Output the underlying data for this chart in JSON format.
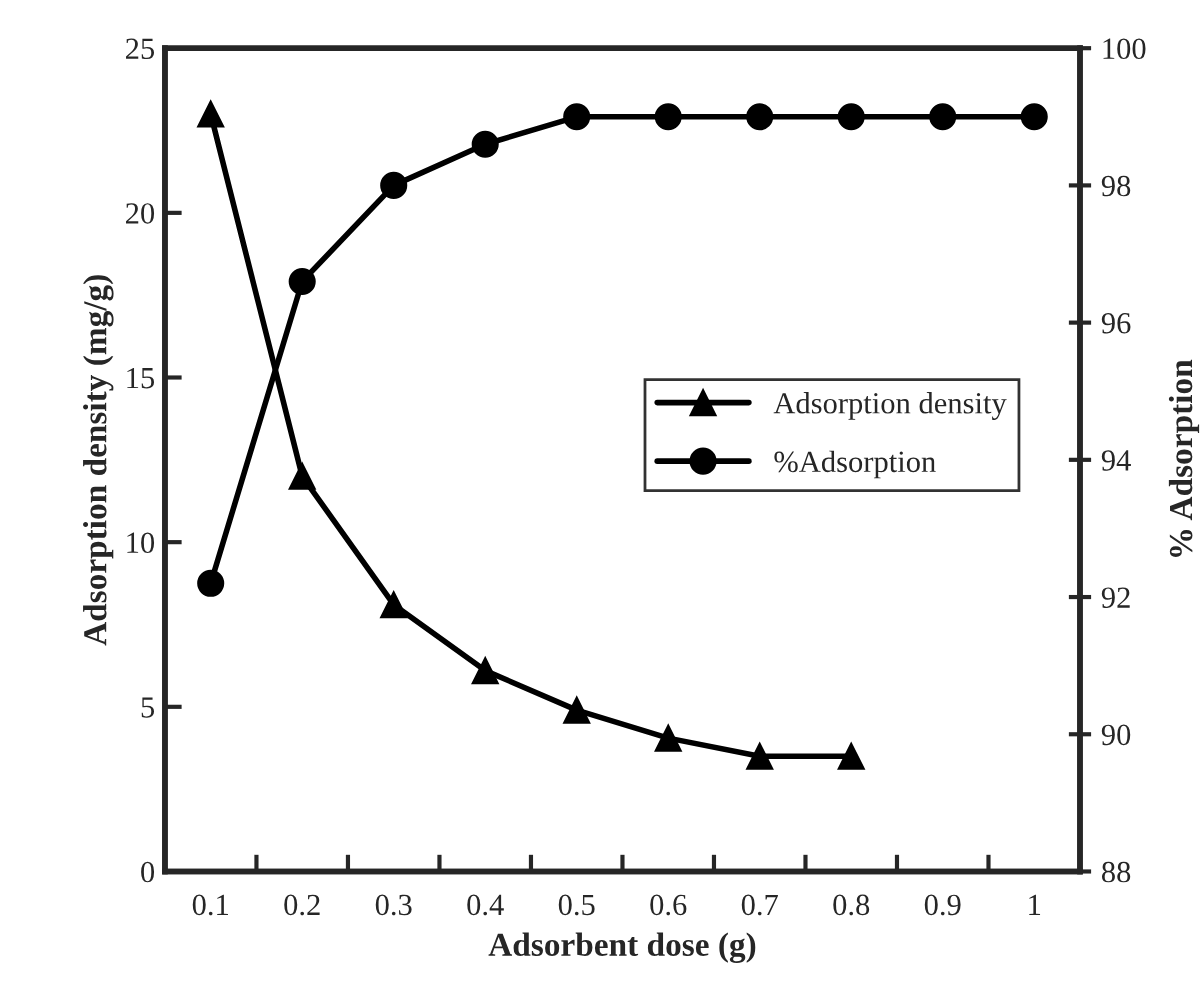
{
  "chart_data": {
    "type": "line",
    "xlabel": "Adsorbent dose (g)",
    "ylabel": "Adsorption density (mg/g)",
    "y2label": "% Adsorption",
    "categories": [
      "0.1",
      "0.2",
      "0.3",
      "0.4",
      "0.5",
      "0.6",
      "0.7",
      "0.8",
      "0.9",
      "1"
    ],
    "series": [
      {
        "name": "Adsorption density",
        "color": "#000000",
        "marker": "triangle",
        "values": [
          23.0,
          12.0,
          8.1,
          6.1,
          4.9,
          4.05,
          3.5,
          3.5,
          null,
          null
        ]
      },
      {
        "name": "%Adsorption",
        "color": "#000000",
        "marker": "circle",
        "axis": "y2",
        "values": [
          92.2,
          96.6,
          98.0,
          98.6,
          99.0,
          99.0,
          99.0,
          99.0,
          99.0,
          99.0
        ]
      }
    ],
    "ylim": [
      0,
      25
    ],
    "yticks": [
      0,
      5,
      10,
      15,
      20,
      25
    ],
    "y2lim": [
      88,
      100
    ],
    "y2ticks": [
      88,
      90,
      92,
      94,
      96,
      98,
      100
    ],
    "grid": false,
    "legend": "right",
    "line_style": "solid"
  }
}
